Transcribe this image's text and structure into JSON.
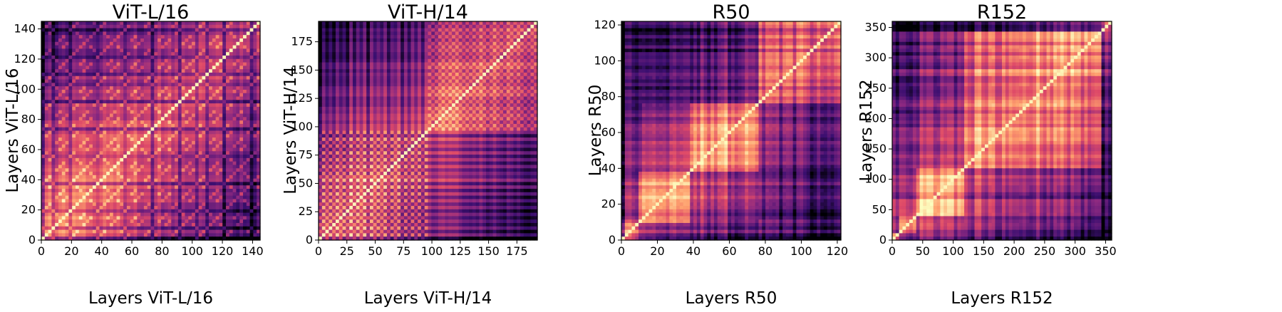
{
  "colormap": "magma",
  "colormap_stops": [
    "#000004",
    "#3b0f70",
    "#8c2981",
    "#de4968",
    "#fe9f6d",
    "#fcfdbf"
  ],
  "chart_data": [
    {
      "type": "heatmap",
      "title": "ViT-L/16",
      "xlabel": "Layers ViT-L/16",
      "ylabel": "Layers ViT-L/16",
      "n": 145,
      "xlim": [
        0,
        145
      ],
      "ylim": [
        0,
        145
      ],
      "xticks": [
        0,
        20,
        40,
        60,
        80,
        100,
        120,
        140
      ],
      "yticks": [
        0,
        20,
        40,
        60,
        80,
        100,
        120,
        140
      ],
      "pattern": "vit",
      "period": 6,
      "value_range": [
        0,
        1
      ]
    },
    {
      "type": "heatmap",
      "title": "ViT-H/14",
      "xlabel": "Layers ViT-H/14",
      "ylabel": "Layers ViT-H/14",
      "n": 193,
      "xlim": [
        0,
        193
      ],
      "ylim": [
        0,
        193
      ],
      "xticks": [
        0,
        25,
        50,
        75,
        100,
        125,
        150,
        175
      ],
      "yticks": [
        0,
        25,
        50,
        75,
        100,
        125,
        150,
        175
      ],
      "pattern": "vit",
      "period": 6,
      "value_range": [
        0,
        1
      ]
    },
    {
      "type": "heatmap",
      "title": "R50",
      "xlabel": "Layers R50",
      "ylabel": "Layers R50",
      "n": 122,
      "xlim": [
        0,
        122
      ],
      "ylim": [
        0,
        122
      ],
      "xticks": [
        0,
        20,
        40,
        60,
        80,
        100,
        120
      ],
      "yticks": [
        0,
        20,
        40,
        60,
        80,
        100,
        120
      ],
      "pattern": "resnet",
      "stage_boundaries": [
        10,
        39,
        76,
        122
      ],
      "value_range": [
        0,
        1
      ]
    },
    {
      "type": "heatmap",
      "title": "R152",
      "xlabel": "Layers R152",
      "ylabel": "Layers R152",
      "n": 360,
      "xlim": [
        0,
        360
      ],
      "ylim": [
        0,
        360
      ],
      "xticks": [
        0,
        50,
        100,
        150,
        200,
        250,
        300,
        350
      ],
      "yticks": [
        0,
        50,
        100,
        150,
        200,
        250,
        300,
        350
      ],
      "pattern": "resnet",
      "stage_boundaries": [
        10,
        38,
        118,
        345,
        360
      ],
      "value_range": [
        0,
        1
      ]
    }
  ]
}
